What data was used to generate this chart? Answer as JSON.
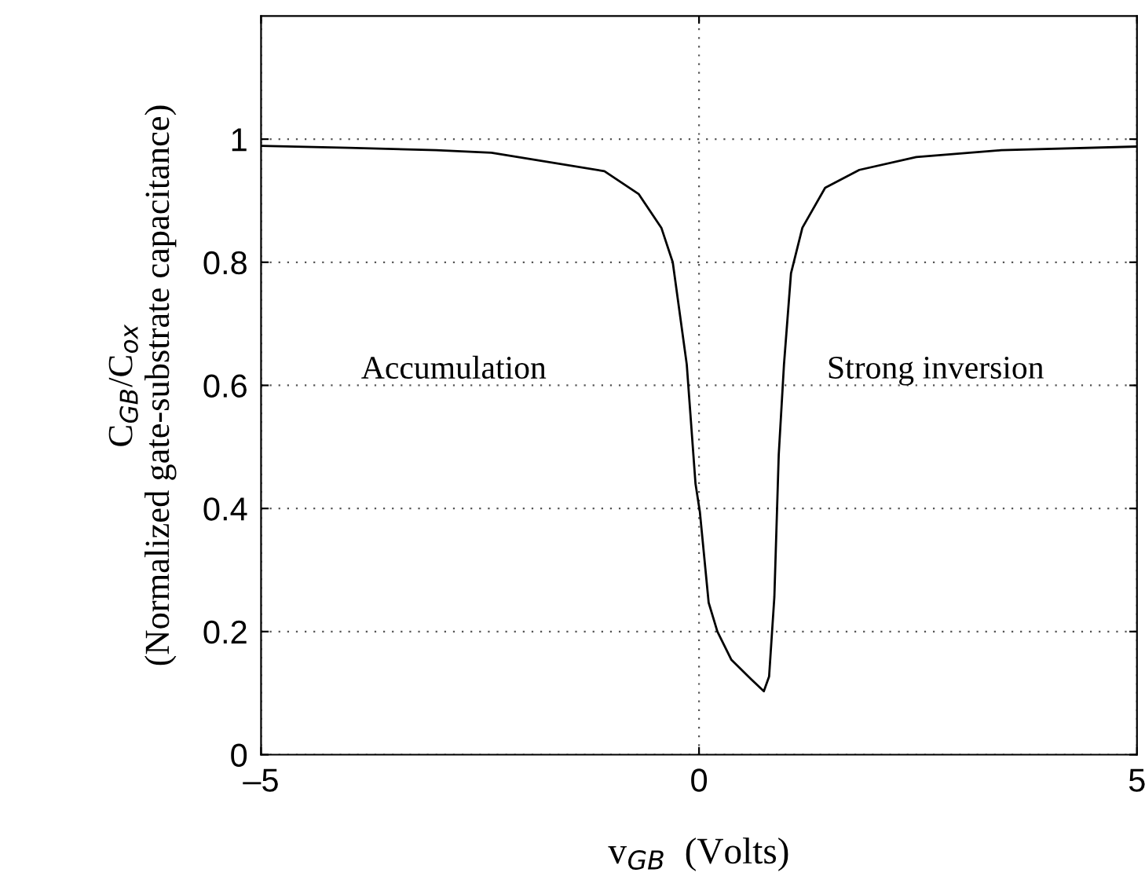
{
  "chart_data": {
    "type": "line",
    "xlabel": "v$_{GB}$  (Volts)",
    "ylabel": "C$_{GB}$/C$_{ox}$\n(Normalized gate-substrate capacitance)",
    "annotations": [
      "Accumulation",
      "Strong inversion"
    ],
    "x": [
      -5,
      -4,
      -3,
      -2.37,
      -1.08,
      -0.69,
      -0.43,
      -0.3,
      -0.14,
      -0.04,
      0.01,
      0.11,
      0.21,
      0.37,
      0.6,
      0.74,
      0.8,
      0.86,
      0.91,
      0.97,
      1.05,
      1.18,
      1.44,
      1.83,
      2.48,
      3.45,
      5
    ],
    "series": [
      {
        "color": "#000000",
        "values": [
          0.989,
          0.986,
          0.982,
          0.978,
          0.948,
          0.911,
          0.856,
          0.8,
          0.634,
          0.44,
          0.394,
          0.247,
          0.2,
          0.154,
          0.122,
          0.103,
          0.127,
          0.256,
          0.487,
          0.634,
          0.782,
          0.856,
          0.921,
          0.95,
          0.971,
          0.982,
          0.988
        ]
      }
    ],
    "xlim": [
      -5,
      5
    ],
    "ylim": [
      0,
      1.2
    ],
    "xticks": [
      {
        "value": -5,
        "label": "–5"
      },
      0,
      5
    ],
    "yticks": [
      0,
      0.2,
      0.4,
      0.6,
      0.8,
      1
    ],
    "grid": true,
    "line_style": "solid",
    "marker": "none"
  }
}
